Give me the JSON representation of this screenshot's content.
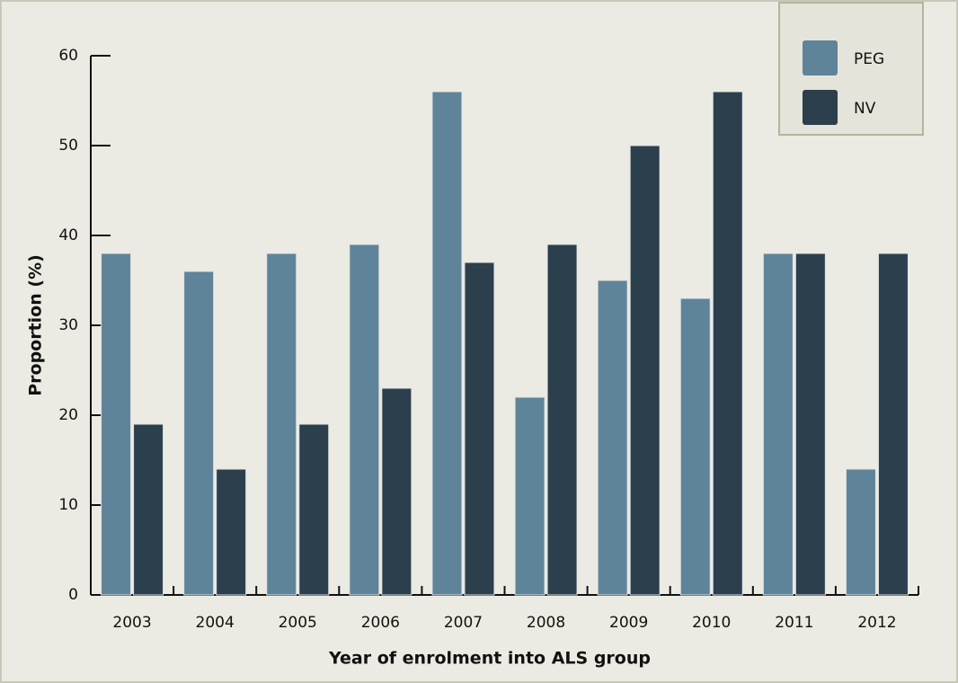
{
  "chart_data": {
    "type": "bar",
    "x_label": "Year of enrolment into ALS group",
    "y_label": "Proportion (%)",
    "categories": [
      "2003",
      "2004",
      "2005",
      "2006",
      "2007",
      "2008",
      "2009",
      "2010",
      "2011",
      "2012"
    ],
    "series": [
      {
        "name": "PEG",
        "color": "#5f8499",
        "values": [
          38,
          36,
          38,
          39,
          56,
          22,
          35,
          33,
          38,
          14
        ]
      },
      {
        "name": "NV",
        "color": "#2c3f4d",
        "values": [
          19,
          14,
          19,
          23,
          37,
          39,
          50,
          56,
          38,
          38
        ]
      }
    ],
    "ylim": [
      0,
      60
    ],
    "yticks": [
      0,
      10,
      20,
      30,
      40,
      50,
      60
    ],
    "grid": false,
    "legend": "top-right"
  }
}
